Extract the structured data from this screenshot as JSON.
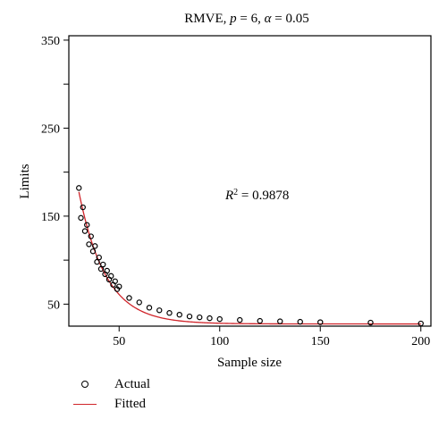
{
  "chart_data": {
    "type": "scatter",
    "title_parts": {
      "prefix": "RMVE, ",
      "p_sym": "p",
      "p_eq": " = 6, ",
      "alpha_sym": "α",
      "alpha_eq": " = 0.05"
    },
    "xlabel": "Sample size",
    "ylabel": "Limits",
    "xlim": [
      25,
      205
    ],
    "ylim": [
      25,
      355
    ],
    "xticks": [
      50,
      100,
      150,
      200
    ],
    "yticks": [
      50,
      150,
      250,
      350
    ],
    "yminor_ticks": [
      100,
      200,
      300
    ],
    "grid": false,
    "annotation": {
      "base": "R",
      "sup": "2",
      "rest": " = 0.9878"
    },
    "legend_placement": "bottom-left",
    "series": [
      {
        "name": "Actual",
        "kind": "points",
        "color": "#000000",
        "x": [
          30,
          31,
          32,
          33,
          34,
          35,
          36,
          37,
          38,
          39,
          40,
          41,
          42,
          43,
          44,
          45,
          46,
          47,
          48,
          49,
          50,
          55,
          60,
          65,
          70,
          75,
          80,
          85,
          90,
          95,
          100,
          110,
          120,
          130,
          140,
          150,
          175,
          200
        ],
        "y": [
          182,
          148,
          160,
          133,
          140,
          118,
          127,
          110,
          116,
          98,
          103,
          90,
          95,
          84,
          88,
          78,
          82,
          72,
          76,
          67,
          70,
          57,
          52,
          46,
          43,
          40,
          38,
          36,
          35,
          34,
          33,
          32,
          31,
          30.5,
          30,
          29.5,
          29,
          28
        ]
      },
      {
        "name": "Fitted",
        "kind": "line",
        "color": "#d0242a",
        "model": {
          "a": 27.5,
          "b": 150,
          "k": 0.075,
          "x0": 30
        }
      }
    ]
  }
}
